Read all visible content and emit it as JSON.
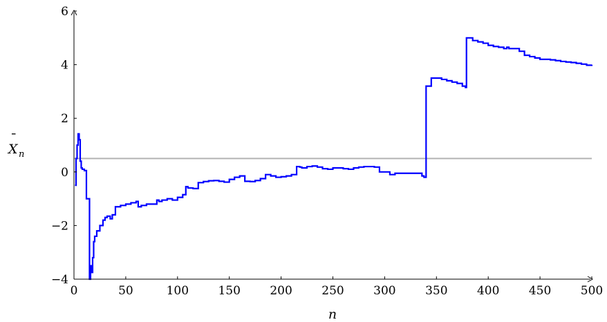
{
  "chart_data": {
    "type": "line",
    "xlabel": "n",
    "ylabel": {
      "symbol": "X",
      "overbar": "¯",
      "subscript": "n"
    },
    "xlim": [
      0,
      500
    ],
    "ylim": [
      -4,
      6
    ],
    "xticks": [
      "0",
      "50",
      "100",
      "150",
      "200",
      "250",
      "300",
      "350",
      "400",
      "450",
      "500"
    ],
    "yticks": [
      "−4",
      "−2",
      "0",
      "2",
      "4",
      "6"
    ],
    "reference_line": {
      "y": 0.5,
      "color": "#b3b3b3"
    },
    "series": [
      {
        "color": "#0000ff",
        "step": true,
        "x": [
          1,
          2,
          3,
          4,
          5,
          6,
          7,
          8,
          10,
          12,
          13,
          14,
          15,
          16,
          17,
          18,
          19,
          20,
          22,
          25,
          28,
          30,
          32,
          35,
          37,
          40,
          45,
          50,
          55,
          60,
          62,
          65,
          70,
          80,
          82,
          85,
          90,
          95,
          100,
          105,
          108,
          110,
          115,
          120,
          125,
          130,
          135,
          140,
          145,
          150,
          155,
          160,
          165,
          170,
          175,
          180,
          185,
          190,
          195,
          200,
          205,
          210,
          215,
          218,
          220,
          225,
          230,
          235,
          240,
          245,
          250,
          255,
          260,
          265,
          270,
          275,
          280,
          285,
          290,
          295,
          300,
          305,
          310,
          315,
          320,
          325,
          330,
          336,
          338,
          340,
          345,
          350,
          355,
          360,
          365,
          370,
          375,
          378,
          379,
          385,
          390,
          395,
          400,
          405,
          410,
          415,
          418,
          420,
          430,
          435,
          440,
          445,
          450,
          455,
          460,
          465,
          470,
          475,
          480,
          485,
          490,
          495,
          500
        ],
        "y": [
          -0.5,
          0.5,
          1.0,
          1.42,
          1.2,
          0.4,
          0.15,
          0.1,
          0.05,
          -1.0,
          -1.0,
          -1.0,
          -4.0,
          -3.5,
          -3.75,
          -3.2,
          -2.6,
          -2.4,
          -2.2,
          -2.0,
          -1.8,
          -1.7,
          -1.65,
          -1.75,
          -1.6,
          -1.3,
          -1.25,
          -1.2,
          -1.15,
          -1.1,
          -1.3,
          -1.25,
          -1.2,
          -1.05,
          -1.1,
          -1.05,
          -1.0,
          -1.05,
          -0.95,
          -0.85,
          -0.55,
          -0.6,
          -0.62,
          -0.4,
          -0.36,
          -0.33,
          -0.32,
          -0.35,
          -0.38,
          -0.28,
          -0.2,
          -0.15,
          -0.35,
          -0.36,
          -0.32,
          -0.25,
          -0.1,
          -0.15,
          -0.2,
          -0.18,
          -0.15,
          -0.1,
          0.2,
          0.18,
          0.15,
          0.2,
          0.22,
          0.18,
          0.12,
          0.1,
          0.15,
          0.15,
          0.12,
          0.1,
          0.15,
          0.18,
          0.2,
          0.2,
          0.18,
          0.0,
          0.0,
          -0.1,
          -0.05,
          -0.05,
          -0.05,
          -0.05,
          -0.05,
          -0.15,
          -0.2,
          3.2,
          3.5,
          3.5,
          3.45,
          3.4,
          3.35,
          3.3,
          3.2,
          3.15,
          5.0,
          4.9,
          4.85,
          4.8,
          4.72,
          4.68,
          4.65,
          4.6,
          4.65,
          4.6,
          4.5,
          4.35,
          4.3,
          4.25,
          4.2,
          4.2,
          4.18,
          4.15,
          4.12,
          4.1,
          4.08,
          4.05,
          4.02,
          3.98,
          4.0
        ]
      }
    ]
  }
}
